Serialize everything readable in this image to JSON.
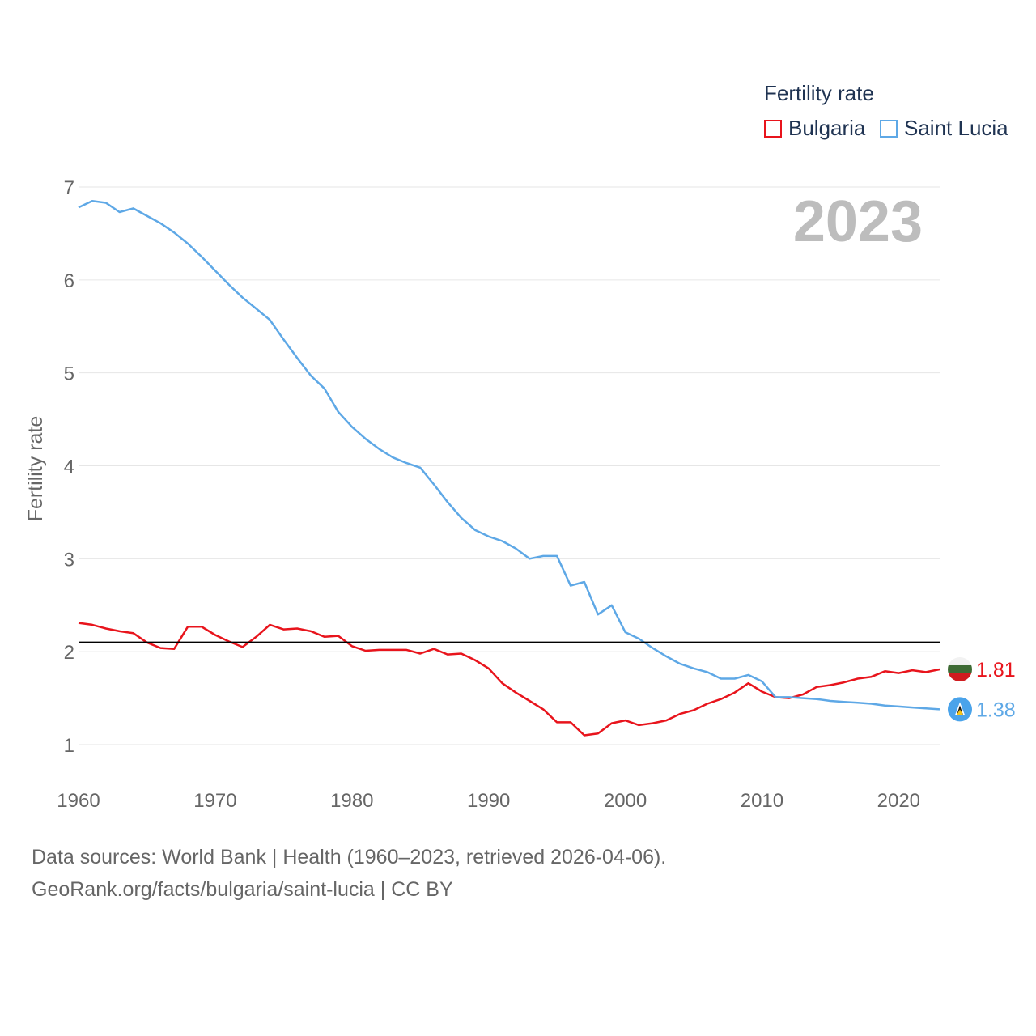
{
  "legend": {
    "title": "Fertility rate",
    "items": [
      {
        "label": "Bulgaria",
        "color": "#e8141c"
      },
      {
        "label": "Saint Lucia",
        "color": "#5ea8e6"
      }
    ]
  },
  "footer": {
    "line1": "Data sources: World Bank | Health (1960–2023, retrieved 2026-04-06).",
    "line2": "GeoRank.org/facts/bulgaria/saint-lucia | CC BY"
  },
  "chart_data": {
    "type": "line",
    "title": "Fertility rate",
    "year_label": "2023",
    "xlabel": "",
    "ylabel": "Fertility rate",
    "xlim": [
      1960,
      2023
    ],
    "ylim": [
      0.5,
      7.2
    ],
    "x_ticks": [
      1960,
      1970,
      1980,
      1990,
      2000,
      2010,
      2020
    ],
    "y_ticks": [
      1,
      2,
      3,
      4,
      5,
      6,
      7
    ],
    "grid": true,
    "reference_line": {
      "y": 2.1,
      "color": "#000000"
    },
    "x": [
      1960,
      1961,
      1962,
      1963,
      1964,
      1965,
      1966,
      1967,
      1968,
      1969,
      1970,
      1971,
      1972,
      1973,
      1974,
      1975,
      1976,
      1977,
      1978,
      1979,
      1980,
      1981,
      1982,
      1983,
      1984,
      1985,
      1986,
      1987,
      1988,
      1989,
      1990,
      1991,
      1992,
      1993,
      1994,
      1995,
      1996,
      1997,
      1998,
      1999,
      2000,
      2001,
      2002,
      2003,
      2004,
      2005,
      2006,
      2007,
      2008,
      2009,
      2010,
      2011,
      2012,
      2013,
      2014,
      2015,
      2016,
      2017,
      2018,
      2019,
      2020,
      2021,
      2022,
      2023
    ],
    "series": [
      {
        "name": "Bulgaria",
        "color": "#e8141c",
        "end_label": "1.81",
        "values": [
          2.31,
          2.29,
          2.25,
          2.22,
          2.2,
          2.1,
          2.04,
          2.03,
          2.27,
          2.27,
          2.18,
          2.11,
          2.05,
          2.16,
          2.29,
          2.24,
          2.25,
          2.22,
          2.16,
          2.17,
          2.06,
          2.01,
          2.02,
          2.02,
          2.02,
          1.98,
          2.03,
          1.97,
          1.98,
          1.91,
          1.82,
          1.66,
          1.56,
          1.47,
          1.38,
          1.24,
          1.24,
          1.1,
          1.12,
          1.23,
          1.26,
          1.21,
          1.23,
          1.26,
          1.33,
          1.37,
          1.44,
          1.49,
          1.56,
          1.66,
          1.57,
          1.51,
          1.5,
          1.54,
          1.62,
          1.64,
          1.67,
          1.71,
          1.73,
          1.79,
          1.77,
          1.8,
          1.78,
          1.81
        ]
      },
      {
        "name": "Saint Lucia",
        "color": "#5ea8e6",
        "end_label": "1.38",
        "values": [
          6.78,
          6.85,
          6.83,
          6.73,
          6.77,
          6.69,
          6.61,
          6.51,
          6.39,
          6.25,
          6.1,
          5.95,
          5.81,
          5.69,
          5.57,
          5.36,
          5.16,
          4.97,
          4.83,
          4.58,
          4.42,
          4.29,
          4.18,
          4.09,
          4.03,
          3.98,
          3.8,
          3.61,
          3.44,
          3.31,
          3.24,
          3.19,
          3.11,
          3.0,
          3.03,
          3.03,
          2.71,
          2.75,
          2.4,
          2.5,
          2.21,
          2.14,
          2.04,
          1.95,
          1.87,
          1.82,
          1.78,
          1.71,
          1.71,
          1.75,
          1.68,
          1.51,
          1.51,
          1.5,
          1.49,
          1.47,
          1.46,
          1.45,
          1.44,
          1.42,
          1.41,
          1.4,
          1.39,
          1.38
        ]
      }
    ]
  }
}
